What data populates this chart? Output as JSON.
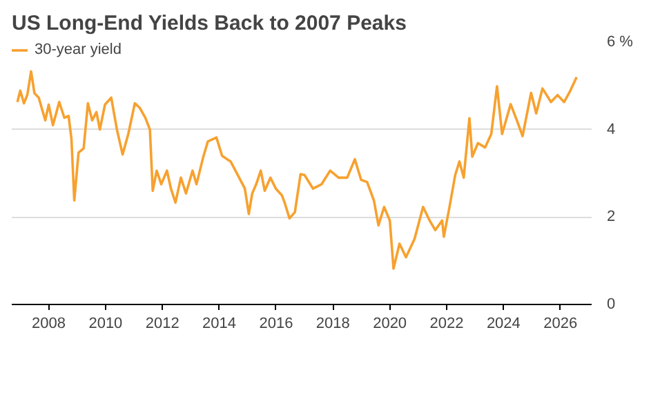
{
  "chart_data": {
    "type": "line",
    "title": "US Long-End Yields Back to 2007 Peaks",
    "x": [
      2006.9,
      2007.0,
      2007.13,
      2007.25,
      2007.38,
      2007.5,
      2007.65,
      2007.88,
      2008.0,
      2008.15,
      2008.37,
      2008.55,
      2008.7,
      2008.8,
      2008.9,
      2009.05,
      2009.23,
      2009.38,
      2009.53,
      2009.68,
      2009.8,
      2009.98,
      2010.2,
      2010.4,
      2010.6,
      2010.8,
      2011.03,
      2011.2,
      2011.4,
      2011.56,
      2011.66,
      2011.8,
      2011.96,
      2012.16,
      2012.3,
      2012.46,
      2012.65,
      2012.83,
      2013.06,
      2013.2,
      2013.44,
      2013.6,
      2013.9,
      2014.1,
      2014.4,
      2014.7,
      2014.9,
      2015.04,
      2015.16,
      2015.3,
      2015.46,
      2015.6,
      2015.8,
      2015.99,
      2016.2,
      2016.3,
      2016.47,
      2016.66,
      2016.86,
      2017.0,
      2017.3,
      2017.6,
      2017.9,
      2018.2,
      2018.5,
      2018.77,
      2018.99,
      2019.2,
      2019.44,
      2019.6,
      2019.8,
      2020.0,
      2020.13,
      2020.34,
      2020.57,
      2020.87,
      2021.17,
      2021.4,
      2021.6,
      2021.84,
      2021.9,
      2022.1,
      2022.3,
      2022.45,
      2022.6,
      2022.8,
      2022.9,
      2023.1,
      2023.35,
      2023.57,
      2023.77,
      2023.95,
      2024.25,
      2024.47,
      2024.67,
      2024.97,
      2025.15,
      2025.37,
      2025.67,
      2025.9,
      2026.13,
      2026.35,
      2026.57
    ],
    "series": [
      {
        "name": "30-year yield",
        "color": "#f7a12f",
        "values": [
          4.63,
          4.89,
          4.6,
          4.8,
          5.33,
          4.83,
          4.73,
          4.21,
          4.57,
          4.1,
          4.63,
          4.27,
          4.31,
          3.79,
          2.38,
          3.47,
          3.57,
          4.6,
          4.21,
          4.4,
          4.0,
          4.57,
          4.73,
          4.0,
          3.43,
          3.9,
          4.6,
          4.5,
          4.27,
          4.0,
          2.6,
          3.06,
          2.75,
          3.06,
          2.65,
          2.33,
          2.9,
          2.54,
          3.06,
          2.75,
          3.38,
          3.73,
          3.82,
          3.4,
          3.27,
          2.9,
          2.65,
          2.07,
          2.54,
          2.75,
          3.06,
          2.6,
          2.9,
          2.65,
          2.5,
          2.33,
          1.97,
          2.11,
          2.98,
          2.96,
          2.65,
          2.75,
          3.06,
          2.9,
          2.9,
          3.32,
          2.85,
          2.8,
          2.38,
          1.81,
          2.23,
          1.92,
          0.82,
          1.39,
          1.08,
          1.5,
          2.23,
          1.92,
          1.7,
          1.92,
          1.55,
          2.23,
          2.96,
          3.27,
          2.9,
          4.26,
          3.38,
          3.69,
          3.59,
          3.9,
          4.99,
          3.9,
          4.58,
          4.21,
          3.85,
          4.84,
          4.37,
          4.94,
          4.63,
          4.79,
          4.63,
          4.89,
          5.2
        ]
      }
    ],
    "xlim": [
      2006.7,
      2027.1
    ],
    "xticks": [
      2008,
      2010,
      2012,
      2014,
      2016,
      2018,
      2020,
      2022,
      2024,
      2026
    ],
    "ylim": [
      0,
      6
    ],
    "yticks": [
      0,
      2,
      4,
      {
        "value": 6,
        "label": "6 %"
      }
    ],
    "grid": "y",
    "legend": "top left",
    "line_style": "solid",
    "marker": "none"
  }
}
